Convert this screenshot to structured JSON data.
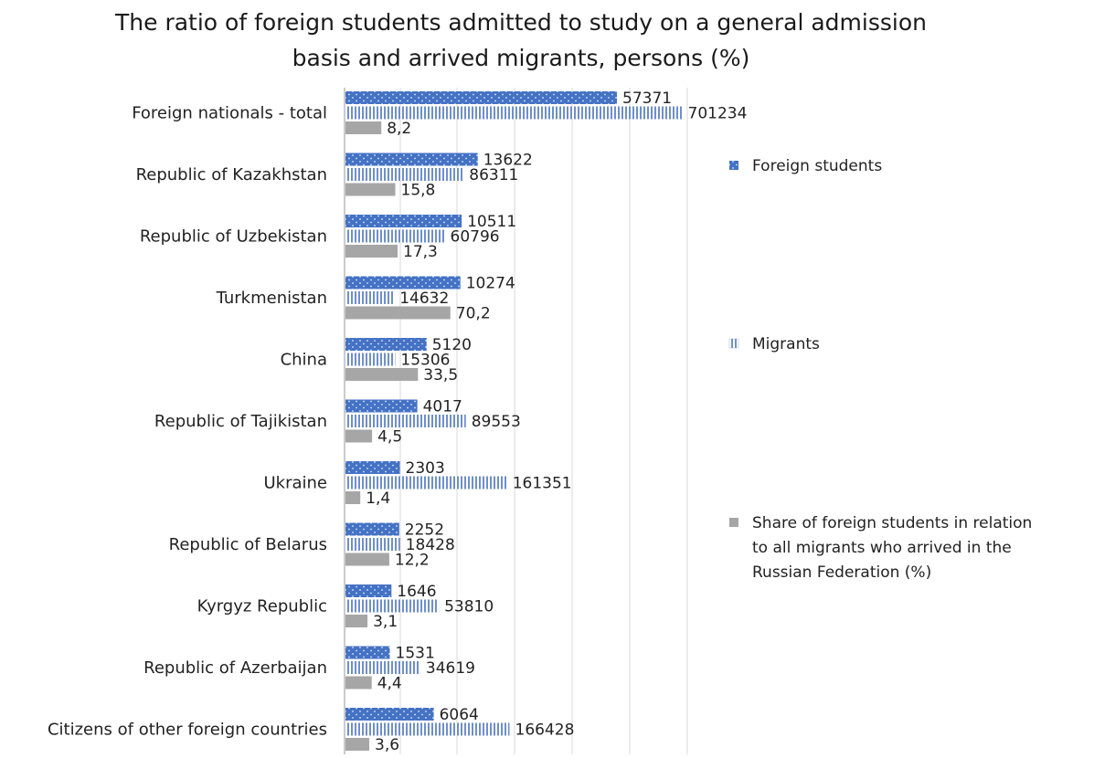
{
  "chart_data": {
    "type": "bar",
    "orientation": "horizontal",
    "title_lines": [
      "The ratio of foreign students admitted to study on a general admission",
      "basis and arrived migrants, persons (%)"
    ],
    "categories": [
      "Foreign nationals - total",
      "Republic of Kazakhstan",
      "Republic of Uzbekistan",
      "Turkmenistan",
      "China",
      "Republic of Tajikistan",
      "Ukraine",
      "Republic of Belarus",
      "Kyrgyz Republic",
      "Republic of Azerbaijan",
      "Citizens of other foreign countries"
    ],
    "series": [
      {
        "name": "Foreign students",
        "color": "#4472c4",
        "pattern": "dotted",
        "values": [
          57371,
          13622,
          10511,
          10274,
          5120,
          4017,
          2303,
          2252,
          1646,
          1531,
          6064
        ],
        "labels": [
          "57371",
          "13622",
          "10511",
          "10274",
          "5120",
          "4017",
          "2303",
          "2252",
          "1646",
          "1531",
          "6064"
        ]
      },
      {
        "name": "Migrants",
        "color": "#7f9fd6",
        "pattern": "vertical-stripes",
        "values": [
          701234,
          86311,
          60796,
          14632,
          15306,
          89553,
          161351,
          18428,
          53810,
          34619,
          166428
        ],
        "labels": [
          "701234",
          "86311",
          "60796",
          "14632",
          "15306",
          "89553",
          "161351",
          "18428",
          "53810",
          "34619",
          "166428"
        ]
      },
      {
        "name_lines": [
          "Share of foreign students in relation",
          "to all migrants who arrived in the",
          "Russian Federation (%)"
        ],
        "color": "#a6a6a6",
        "pattern": "solid",
        "values": [
          8.2,
          15.8,
          17.3,
          70.2,
          33.5,
          4.5,
          1.4,
          12.2,
          3.1,
          4.4,
          3.6
        ],
        "labels": [
          "8,2",
          "15,8",
          "17,3",
          "70,2",
          "33,5",
          "4,5",
          "1,4",
          "12,2",
          "3,1",
          "4,4",
          "3,6"
        ]
      }
    ],
    "legend_position": "right",
    "gridlines": "vertical",
    "axis_labels_visible": false
  }
}
